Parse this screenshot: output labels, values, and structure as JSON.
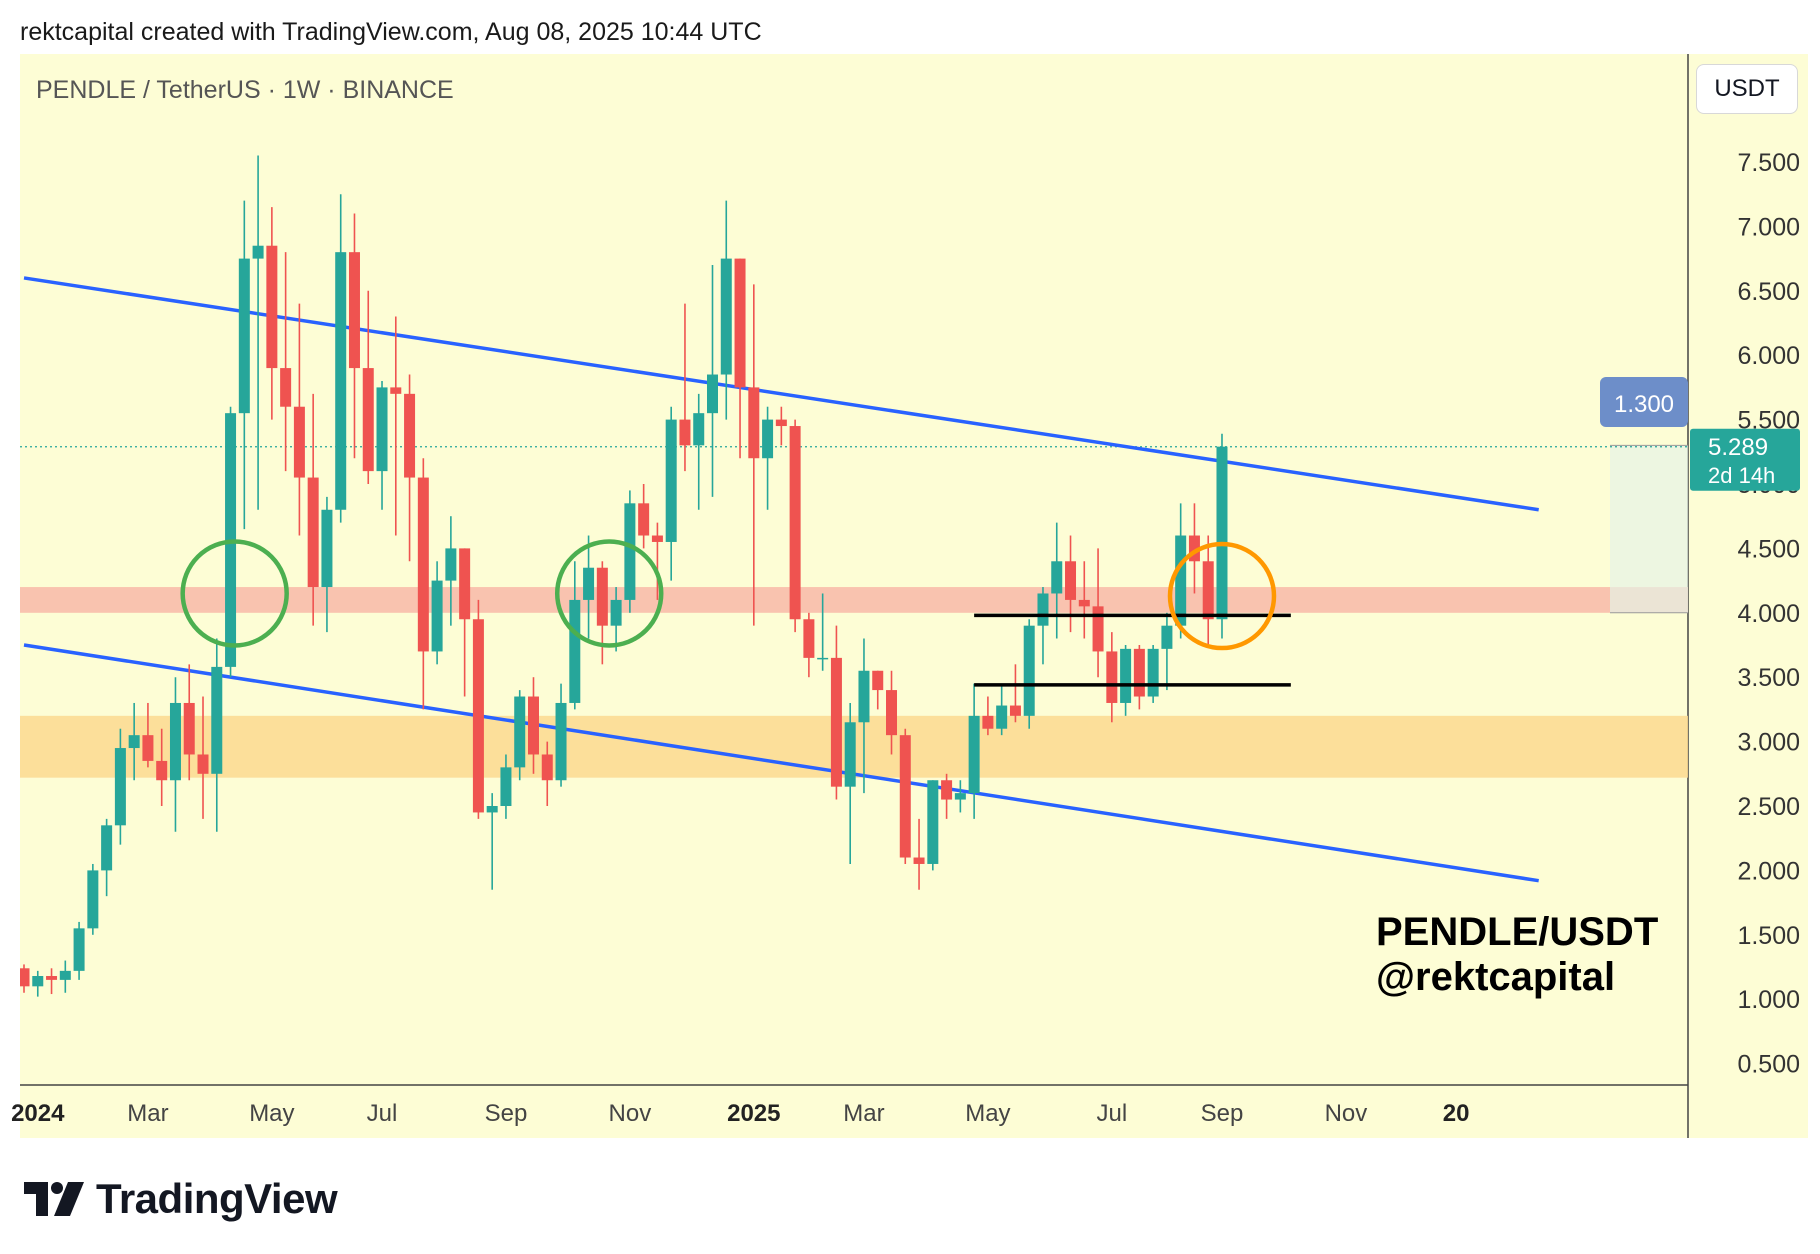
{
  "header": {
    "text": "rektcapital created with TradingView.com, Aug 08, 2025 10:44 UTC"
  },
  "pair_label": "PENDLE / TetherUS · 1W · BINANCE",
  "currency_button": "USDT",
  "watermark": {
    "line1": "PENDLE/USDT",
    "line2": "@rektcapital"
  },
  "footer": {
    "brand": "TradingView"
  },
  "colors": {
    "background": "#fdfdd5",
    "up": "#26a69a",
    "down": "#ef5350",
    "trendline": "#2962ff",
    "resistance_zone": "#f8b8a8",
    "support_zone": "#fcd98f",
    "green_circle": "#4caf50",
    "orange_circle": "#ff9800",
    "price_label": "#26a69a",
    "measure_label": "#6d8ec9"
  },
  "chart_data": {
    "type": "candlestick",
    "title": "PENDLE / TetherUS · 1W · BINANCE",
    "ylim": [
      0.3,
      8.2
    ],
    "y_ticks": [
      "7.500",
      "7.000",
      "6.500",
      "6.000",
      "5.500",
      "5.000",
      "4.500",
      "4.000",
      "3.500",
      "3.000",
      "2.500",
      "2.000",
      "1.500",
      "1.000",
      "0.500"
    ],
    "y_tick_values": [
      7.5,
      7.0,
      6.5,
      6.0,
      5.5,
      5.0,
      4.5,
      4.0,
      3.5,
      3.0,
      2.5,
      2.0,
      1.5,
      1.0,
      0.5
    ],
    "x_ticks": [
      {
        "label": "2024",
        "week": 1,
        "bold": true
      },
      {
        "label": "Mar",
        "week": 9,
        "bold": false
      },
      {
        "label": "May",
        "week": 18,
        "bold": false
      },
      {
        "label": "Jul",
        "week": 26,
        "bold": false
      },
      {
        "label": "Sep",
        "week": 35,
        "bold": false
      },
      {
        "label": "Nov",
        "week": 44,
        "bold": false
      },
      {
        "label": "2025",
        "week": 53,
        "bold": true
      },
      {
        "label": "Mar",
        "week": 61,
        "bold": false
      },
      {
        "label": "May",
        "week": 70,
        "bold": false
      },
      {
        "label": "Jul",
        "week": 79,
        "bold": false
      },
      {
        "label": "Sep",
        "week": 87,
        "bold": false
      },
      {
        "label": "Nov",
        "week": 96,
        "bold": false
      },
      {
        "label": "20",
        "week": 104,
        "bold": true
      }
    ],
    "candles": [
      [
        1.24,
        1.27,
        1.05,
        1.1
      ],
      [
        1.1,
        1.22,
        1.02,
        1.18
      ],
      [
        1.18,
        1.24,
        1.04,
        1.15
      ],
      [
        1.15,
        1.3,
        1.05,
        1.22
      ],
      [
        1.22,
        1.6,
        1.15,
        1.55
      ],
      [
        1.55,
        2.05,
        1.5,
        2.0
      ],
      [
        2.0,
        2.4,
        1.8,
        2.35
      ],
      [
        2.35,
        3.1,
        2.2,
        2.95
      ],
      [
        2.95,
        3.3,
        2.7,
        3.05
      ],
      [
        3.05,
        3.3,
        2.8,
        2.85
      ],
      [
        2.85,
        3.1,
        2.5,
        2.7
      ],
      [
        2.7,
        3.5,
        2.3,
        3.3
      ],
      [
        3.3,
        3.6,
        2.7,
        2.9
      ],
      [
        2.9,
        3.35,
        2.4,
        2.75
      ],
      [
        2.75,
        3.8,
        2.3,
        3.58
      ],
      [
        3.58,
        5.6,
        3.5,
        5.55
      ],
      [
        5.55,
        7.2,
        4.65,
        6.75
      ],
      [
        6.75,
        7.55,
        4.8,
        6.85
      ],
      [
        6.85,
        7.15,
        5.5,
        5.9
      ],
      [
        5.9,
        6.8,
        5.1,
        5.6
      ],
      [
        5.6,
        6.4,
        4.6,
        5.05
      ],
      [
        5.05,
        5.7,
        3.9,
        4.2
      ],
      [
        4.2,
        4.9,
        3.85,
        4.8
      ],
      [
        4.8,
        7.25,
        4.7,
        6.8
      ],
      [
        6.8,
        7.1,
        5.2,
        5.9
      ],
      [
        5.9,
        6.5,
        5.0,
        5.1
      ],
      [
        5.1,
        5.8,
        4.8,
        5.75
      ],
      [
        5.75,
        6.3,
        4.6,
        5.7
      ],
      [
        5.7,
        5.85,
        4.4,
        5.05
      ],
      [
        5.05,
        5.2,
        3.25,
        3.7
      ],
      [
        3.7,
        4.4,
        3.6,
        4.25
      ],
      [
        4.25,
        4.75,
        3.9,
        4.5
      ],
      [
        4.5,
        4.5,
        3.35,
        3.95
      ],
      [
        3.95,
        4.1,
        2.4,
        2.45
      ],
      [
        2.45,
        2.6,
        1.85,
        2.5
      ],
      [
        2.5,
        2.9,
        2.4,
        2.8
      ],
      [
        2.8,
        3.4,
        2.7,
        3.35
      ],
      [
        3.35,
        3.5,
        2.75,
        2.9
      ],
      [
        2.9,
        3.0,
        2.5,
        2.7
      ],
      [
        2.7,
        3.45,
        2.65,
        3.3
      ],
      [
        3.3,
        4.4,
        3.25,
        4.1
      ],
      [
        4.1,
        4.6,
        3.8,
        4.35
      ],
      [
        4.35,
        4.4,
        3.6,
        3.9
      ],
      [
        3.9,
        4.2,
        3.7,
        4.1
      ],
      [
        4.1,
        4.95,
        4.0,
        4.85
      ],
      [
        4.85,
        5.0,
        4.5,
        4.6
      ],
      [
        4.6,
        4.7,
        4.1,
        4.55
      ],
      [
        4.55,
        5.6,
        4.25,
        5.5
      ],
      [
        5.5,
        6.4,
        5.1,
        5.3
      ],
      [
        5.3,
        5.7,
        4.8,
        5.55
      ],
      [
        5.55,
        6.7,
        4.9,
        5.85
      ],
      [
        5.85,
        7.2,
        5.5,
        6.75
      ],
      [
        6.75,
        6.75,
        5.2,
        5.75
      ],
      [
        5.75,
        6.55,
        3.9,
        5.2
      ],
      [
        5.2,
        5.6,
        4.8,
        5.5
      ],
      [
        5.5,
        5.6,
        5.3,
        5.45
      ],
      [
        5.45,
        5.5,
        3.85,
        3.95
      ],
      [
        3.95,
        4.0,
        3.5,
        3.65
      ],
      [
        3.65,
        4.15,
        3.55,
        3.65
      ],
      [
        3.65,
        3.9,
        2.55,
        2.65
      ],
      [
        2.65,
        3.3,
        2.05,
        3.15
      ],
      [
        3.15,
        3.8,
        2.6,
        3.55
      ],
      [
        3.55,
        3.55,
        3.25,
        3.4
      ],
      [
        3.4,
        3.55,
        2.9,
        3.05
      ],
      [
        3.05,
        3.1,
        2.05,
        2.1
      ],
      [
        2.1,
        2.4,
        1.85,
        2.05
      ],
      [
        2.05,
        2.7,
        2.0,
        2.7
      ],
      [
        2.7,
        2.75,
        2.4,
        2.55
      ],
      [
        2.55,
        2.7,
        2.45,
        2.6
      ],
      [
        2.6,
        3.45,
        2.4,
        3.2
      ],
      [
        3.2,
        3.35,
        3.05,
        3.1
      ],
      [
        3.1,
        3.45,
        3.05,
        3.28
      ],
      [
        3.28,
        3.6,
        3.15,
        3.2
      ],
      [
        3.2,
        3.95,
        3.1,
        3.9
      ],
      [
        3.9,
        4.2,
        3.6,
        4.15
      ],
      [
        4.15,
        4.7,
        3.8,
        4.4
      ],
      [
        4.4,
        4.6,
        3.85,
        4.1
      ],
      [
        4.1,
        4.4,
        3.8,
        4.05
      ],
      [
        4.05,
        4.5,
        3.5,
        3.7
      ],
      [
        3.7,
        3.85,
        3.15,
        3.3
      ],
      [
        3.3,
        3.75,
        3.2,
        3.72
      ],
      [
        3.72,
        3.75,
        3.25,
        3.35
      ],
      [
        3.35,
        3.75,
        3.3,
        3.72
      ],
      [
        3.72,
        4.0,
        3.4,
        3.9
      ],
      [
        3.9,
        4.85,
        3.8,
        4.6
      ],
      [
        4.6,
        4.85,
        4.15,
        4.4
      ],
      [
        4.4,
        4.6,
        3.75,
        3.95
      ],
      [
        3.95,
        5.39,
        3.8,
        5.29
      ]
    ],
    "trendlines": [
      {
        "name": "upper-channel",
        "points": [
          [
            0,
            6.6
          ],
          [
            110,
            4.8
          ]
        ]
      },
      {
        "name": "lower-channel",
        "points": [
          [
            0,
            3.75
          ],
          [
            110,
            1.92
          ]
        ]
      }
    ],
    "zones": [
      {
        "name": "resistance-zone",
        "y0": 4.0,
        "y1": 4.2,
        "color": "#f8b8a8"
      },
      {
        "name": "support-zone",
        "y0": 2.72,
        "y1": 3.2,
        "color": "#fcd98f"
      }
    ],
    "horizontal_lines": [
      {
        "name": "black-range-high",
        "x0": 69,
        "x1": 92,
        "y": 3.98
      },
      {
        "name": "black-range-low",
        "x0": 69,
        "x1": 92,
        "y": 3.44
      }
    ],
    "circles": [
      {
        "name": "green-circle-1",
        "week": 15.3,
        "price": 4.15,
        "color": "#4caf50"
      },
      {
        "name": "green-circle-2",
        "week": 42.5,
        "price": 4.15,
        "color": "#4caf50"
      },
      {
        "name": "orange-circle",
        "week": 87,
        "price": 4.13,
        "color": "#ff9800"
      }
    ],
    "current_price": {
      "value": "5.289",
      "countdown": "2d 14h",
      "y": 5.289
    },
    "measure": {
      "label": "1.300",
      "y_from": 4.0,
      "y_to": 5.3
    }
  }
}
